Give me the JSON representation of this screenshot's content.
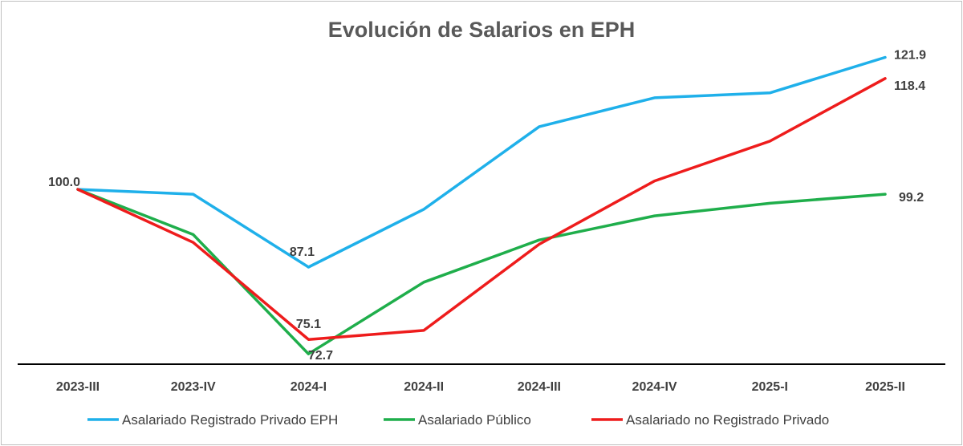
{
  "chart_data": {
    "type": "line",
    "title": "Evolución de Salarios en EPH",
    "categories": [
      "2023-III",
      "2023-IV",
      "2024-I",
      "2024-II",
      "2024-III",
      "2024-IV",
      "2025-I",
      "2025-II"
    ],
    "series": [
      {
        "name": "Asalariado Registrado Privado EPH",
        "color": "#1fb0ea",
        "values": [
          100.0,
          99.2,
          87.1,
          96.7,
          110.4,
          115.2,
          116.0,
          121.9
        ]
      },
      {
        "name": "Asalariado Público",
        "color": "#1fae4b",
        "values": [
          100.0,
          92.5,
          72.7,
          84.6,
          91.6,
          95.6,
          97.7,
          99.2
        ]
      },
      {
        "name": "Asalariado no Registrado Privado",
        "color": "#ee1c1c",
        "values": [
          100.0,
          91.2,
          75.1,
          76.6,
          90.9,
          101.4,
          108.0,
          118.4
        ]
      }
    ],
    "data_labels": [
      {
        "series": 0,
        "index": 0,
        "text": "100.0"
      },
      {
        "series": 0,
        "index": 2,
        "text": "87.1"
      },
      {
        "series": 2,
        "index": 2,
        "text": "75.1"
      },
      {
        "series": 1,
        "index": 2,
        "text": "72.7"
      },
      {
        "series": 0,
        "index": 7,
        "text": "121.9"
      },
      {
        "series": 2,
        "index": 7,
        "text": "118.4"
      },
      {
        "series": 1,
        "index": 7,
        "text": "99.2"
      }
    ],
    "ylim": [
      71,
      122.5
    ],
    "grid": false,
    "legend_position": "bottom"
  }
}
